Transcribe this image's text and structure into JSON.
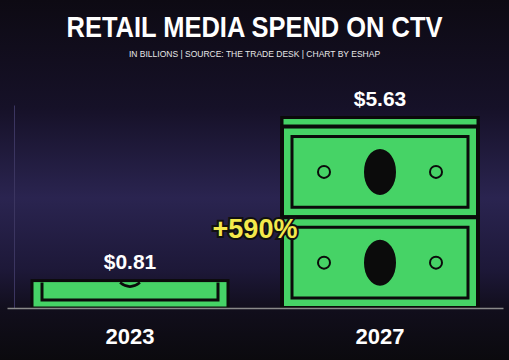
{
  "chart_data": {
    "type": "bar",
    "title": "RETAIL MEDIA SPEND ON CTV",
    "subtitle": "IN BILLIONS | SOURCE: THE TRADE DESK | CHART BY ESHAP",
    "annotation": "+590%",
    "categories": [
      "2023",
      "2027"
    ],
    "values": [
      0.81,
      5.63
    ],
    "value_labels": [
      "$0.81",
      "$5.63"
    ],
    "color": "#46d366",
    "ylim": [
      0,
      6
    ],
    "yticks": [],
    "data_labels": true,
    "tick_labels": "x",
    "grid": false
  }
}
